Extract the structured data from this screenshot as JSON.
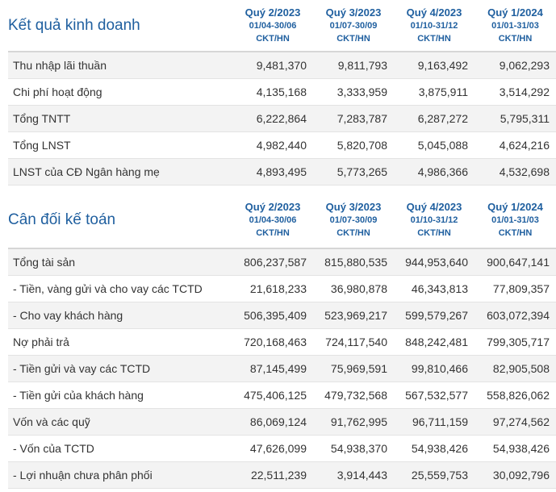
{
  "quarters": [
    {
      "label": "Quý 2/2023",
      "range": "01/04-30/06",
      "unit": "CKT/HN"
    },
    {
      "label": "Quý 3/2023",
      "range": "01/07-30/09",
      "unit": "CKT/HN"
    },
    {
      "label": "Quý 4/2023",
      "range": "01/10-31/12",
      "unit": "CKT/HN"
    },
    {
      "label": "Quý 1/2024",
      "range": "01/01-31/03",
      "unit": "CKT/HN"
    }
  ],
  "income": {
    "title": "Kết quả kinh doanh",
    "rows": [
      {
        "label": "Thu nhập lãi thuần",
        "values": [
          "9,481,370",
          "9,811,793",
          "9,163,492",
          "9,062,293"
        ]
      },
      {
        "label": "Chi phí hoạt động",
        "values": [
          "4,135,168",
          "3,333,959",
          "3,875,911",
          "3,514,292"
        ]
      },
      {
        "label": "Tổng TNTT",
        "values": [
          "6,222,864",
          "7,283,787",
          "6,287,272",
          "5,795,311"
        ]
      },
      {
        "label": "Tổng LNST",
        "values": [
          "4,982,440",
          "5,820,708",
          "5,045,088",
          "4,624,216"
        ]
      },
      {
        "label": "LNST của CĐ Ngân hàng mẹ",
        "values": [
          "4,893,495",
          "5,773,265",
          "4,986,366",
          "4,532,698"
        ]
      }
    ]
  },
  "balance": {
    "title": "Cân đối kế toán",
    "rows": [
      {
        "label": "Tổng tài sản",
        "values": [
          "806,237,587",
          "815,880,535",
          "944,953,640",
          "900,647,141"
        ]
      },
      {
        "label": "- Tiền, vàng gửi và cho vay các TCTD",
        "values": [
          "21,618,233",
          "36,980,878",
          "46,343,813",
          "77,809,357"
        ]
      },
      {
        "label": "- Cho vay khách hàng",
        "values": [
          "506,395,409",
          "523,969,217",
          "599,579,267",
          "603,072,394"
        ]
      },
      {
        "label": "Nợ phải trả",
        "values": [
          "720,168,463",
          "724,117,540",
          "848,242,481",
          "799,305,717"
        ]
      },
      {
        "label": "- Tiền gửi và vay các TCTD",
        "values": [
          "87,145,499",
          "75,969,591",
          "99,810,466",
          "82,905,508"
        ]
      },
      {
        "label": "- Tiền gửi của khách hàng",
        "values": [
          "475,406,125",
          "479,732,568",
          "567,532,577",
          "558,826,062"
        ]
      },
      {
        "label": "Vốn và các quỹ",
        "values": [
          "86,069,124",
          "91,762,995",
          "96,711,159",
          "97,274,562"
        ]
      },
      {
        "label": "- Vốn của TCTD",
        "values": [
          "47,626,099",
          "54,938,370",
          "54,938,426",
          "54,938,426"
        ]
      },
      {
        "label": "- Lợi nhuận chưa phân phối",
        "values": [
          "22,511,239",
          "3,914,443",
          "25,559,753",
          "30,092,796"
        ]
      }
    ]
  }
}
